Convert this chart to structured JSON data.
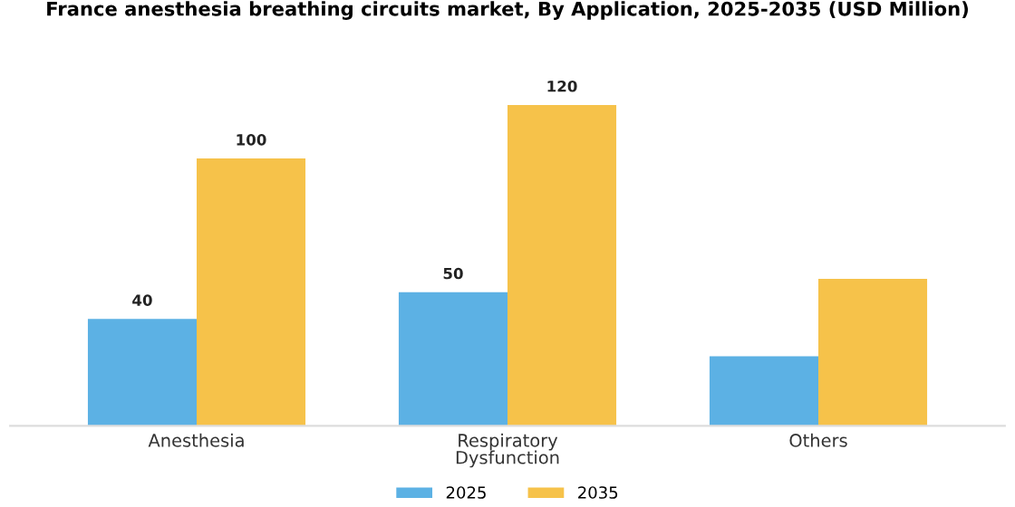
{
  "chart_data": {
    "type": "bar",
    "title": "France anesthesia breathing circuits market, By Application, 2025-2035 (USD Million)",
    "categories": [
      "Anesthesia",
      "Respiratory\nDysfunction",
      "Others"
    ],
    "series": [
      {
        "name": "2025",
        "color": "#5cb1e4",
        "values": [
          40,
          50,
          26
        ],
        "value_labels": [
          "40",
          "50",
          null
        ]
      },
      {
        "name": "2035",
        "color": "#f6c24a",
        "values": [
          100,
          120,
          55
        ],
        "value_labels": [
          "100",
          "120",
          null
        ]
      }
    ],
    "legend": "bottom",
    "grid": false
  }
}
